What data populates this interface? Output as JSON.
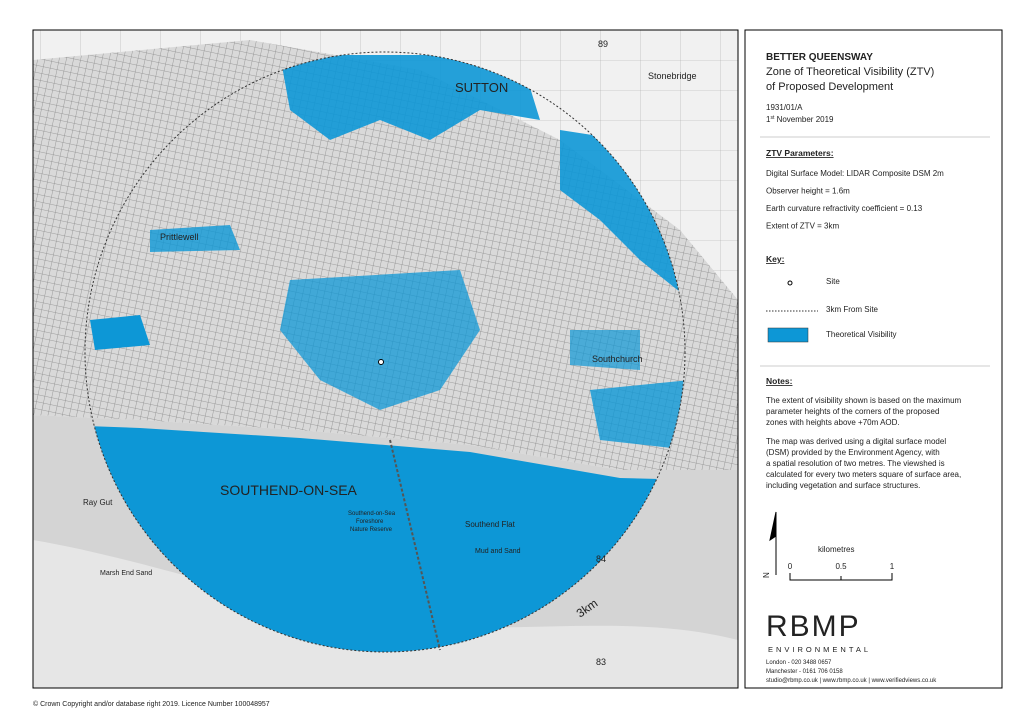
{
  "map": {
    "labels": {
      "sutton": "SUTTON",
      "stonebridge": "Stonebridge",
      "prittlewell": "Prittlewell",
      "southchurch": "Southchurch",
      "town": "SOUTHEND-ON-SEA",
      "flat": "Southend Flat",
      "mud": "Mud and Sand",
      "reserve_1": "Southend-on-Sea",
      "reserve_2": "Foreshore",
      "reserve_3": "Nature Reserve",
      "marsh": "Marsh End Sand",
      "raygut": "Ray Gut",
      "radius": "3km",
      "grid_89": "89",
      "grid_84": "84",
      "grid_83": "83"
    },
    "copyright": "© Crown Copyright and/or database right 2019. Licence Number 100048957"
  },
  "panel": {
    "title": "BETTER QUEENSWAY",
    "subtitle_1": "Zone of Theoretical Visibility (ZTV)",
    "subtitle_2": "of Proposed Development",
    "ref": "1931/01/A",
    "date_day": "1",
    "date_suffix": "st",
    "date_rest": " November 2019",
    "params_heading": "ZTV Parameters:",
    "params": [
      "Digital Surface Model: LIDAR Composite DSM 2m",
      "Observer height = 1.6m",
      "Earth curvature refractivity coefficient = 0.13",
      "Extent of ZTV = 3km"
    ],
    "key_heading": "Key:",
    "key": [
      "Site",
      "3km From Site",
      "Theoretical Visibility"
    ],
    "notes_heading": "Notes:",
    "notes_1": [
      "The extent of visibility shown is based on the maximum",
      "parameter heights of the corners of the proposed",
      "zones with heights above +70m AOD."
    ],
    "notes_2": [
      "The map was derived using a digital surface model",
      "(DSM) provided by the Environment Agency, with",
      "a spatial resolution of two metres. The viewshed is",
      "calculated for every two meters square of surface area,",
      "including vegetation and surface structures."
    ],
    "north": "N",
    "scale_unit": "kilometres",
    "scale_ticks": [
      "0",
      "0.5",
      "1"
    ],
    "logo": "RBMP",
    "logo_sub": "ENVIRONMENTAL",
    "contacts": [
      "London - 020 3488 0657",
      "Manchester - 0161 706 0158",
      "studio@rbmp.co.uk | www.rbmp.co.uk | www.verifiedviews.co.uk"
    ]
  }
}
